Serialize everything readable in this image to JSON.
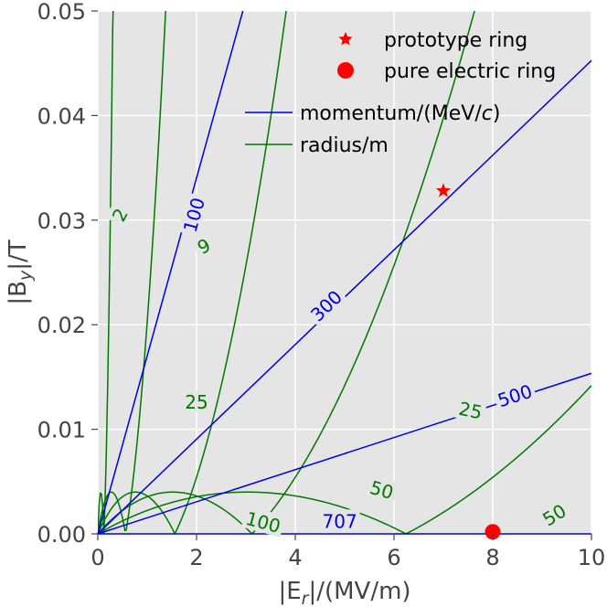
{
  "chart_data": {
    "type": "line",
    "title": "",
    "xlabel_parts": [
      "|E",
      "r",
      "|/(MV/m)"
    ],
    "ylabel_parts": [
      "|B",
      "y",
      "|/T"
    ],
    "xlim": [
      0,
      10
    ],
    "ylim": [
      0,
      0.05
    ],
    "xticks": [
      0,
      2,
      4,
      6,
      8,
      10
    ],
    "yticks": [
      0.0,
      0.01,
      0.02,
      0.03,
      0.04,
      0.05
    ],
    "xtick_labels": [
      "0",
      "2",
      "4",
      "6",
      "8",
      "10"
    ],
    "ytick_labels": [
      "0.00",
      "0.01",
      "0.02",
      "0.03",
      "0.04",
      "0.05"
    ],
    "grid": true,
    "colors": {
      "background": "#e5e5e5",
      "grid": "#ffffff",
      "momentum": "#0000dd",
      "radius": "#007700",
      "marker": "#ff0000"
    },
    "legend": {
      "location": "top-right",
      "entries": [
        {
          "label": "prototype ring",
          "kind": "marker",
          "marker": "star"
        },
        {
          "label": "pure electric ring",
          "kind": "marker",
          "marker": "circle"
        },
        {
          "label_parts": [
            "momentum/(MeV/",
            "c",
            ")"
          ],
          "kind": "line",
          "series": "momentum"
        },
        {
          "label": "radius/m",
          "kind": "line",
          "series": "radius"
        }
      ]
    },
    "momentum_contours": [
      {
        "label": "100",
        "slope": 0.017018,
        "label_at": [
          1.95,
          0.0305
        ]
      },
      {
        "label": "300",
        "slope": 0.004526,
        "label_at": [
          4.63,
          0.0218
        ]
      },
      {
        "label": "500",
        "slope": 0.0015351,
        "label_at": [
          8.45,
          0.0132
        ]
      },
      {
        "label": "707",
        "slope": 0.0,
        "label_at": [
          4.9,
          0.0012
        ]
      }
    ],
    "radius_contours": [
      {
        "label": "2",
        "r": 2,
        "label_at": [
          0.45,
          0.0305
        ],
        "label_angle": -62
      },
      {
        "label": "9",
        "r": 9,
        "label_at": [
          2.15,
          0.0275
        ],
        "label_angle": -28
      },
      {
        "label": "25",
        "r": 25,
        "label_at": [
          2.0,
          0.0126
        ],
        "label_angle": 0
      },
      {
        "label": "25",
        "r": 25,
        "label_at": [
          7.55,
          0.0118
        ],
        "label_angle": 12
      },
      {
        "label": "50",
        "r": 50,
        "label_at": [
          5.75,
          0.0042
        ],
        "label_angle": 16
      },
      {
        "label": "50",
        "r": 50,
        "label_at": [
          9.25,
          0.0018
        ],
        "label_angle": -32
      },
      {
        "label": "100",
        "r": 100,
        "label_at": [
          3.35,
          0.0011
        ],
        "label_angle": 15
      }
    ],
    "points": [
      {
        "name": "prototype ring",
        "marker": "star",
        "x": 7.0,
        "y": 0.0328
      },
      {
        "name": "pure electric ring",
        "marker": "circle",
        "x": 8.0,
        "y": 0.0002
      }
    ]
  }
}
